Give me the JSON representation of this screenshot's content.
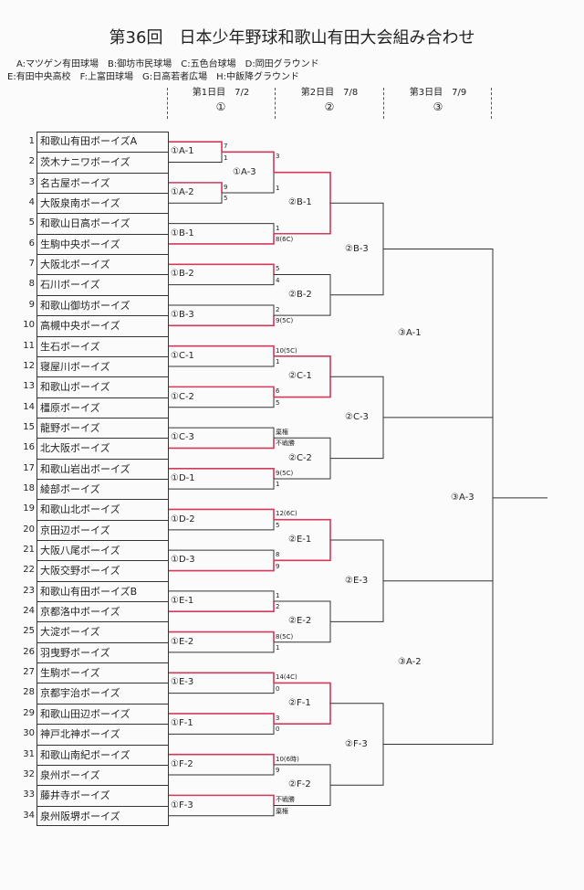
{
  "title": "第36回　日本少年野球和歌山有田大会組み合わせ",
  "venues": [
    "A:マツゲン有田球場　B:御坊市民球場　C:五色台球場　D:岡田グラウンド",
    "E:有田中央高校　F:上富田球場　G:日高若者広場　H:中飯降グラウンド"
  ],
  "days": [
    {
      "label": "第1日目　7/2",
      "num": "①"
    },
    {
      "label": "第2日目　7/8",
      "num": "②"
    },
    {
      "label": "第3日目　7/9",
      "num": "③"
    }
  ],
  "teams": [
    {
      "no": "1",
      "name": "和歌山有田ボーイズA"
    },
    {
      "no": "2",
      "name": "茨木ナニワボーイズ"
    },
    {
      "no": "3",
      "name": "名古屋ボーイズ"
    },
    {
      "no": "4",
      "name": "大阪泉南ボーイズ"
    },
    {
      "no": "5",
      "name": "和歌山日高ボーイズ"
    },
    {
      "no": "6",
      "name": "生駒中央ボーイズ"
    },
    {
      "no": "7",
      "name": "大阪北ボーイズ"
    },
    {
      "no": "8",
      "name": "石川ボーイズ"
    },
    {
      "no": "9",
      "name": "和歌山御坊ボーイズ"
    },
    {
      "no": "10",
      "name": "高槻中央ボーイズ"
    },
    {
      "no": "11",
      "name": "生石ボーイズ"
    },
    {
      "no": "12",
      "name": "寝屋川ボーイズ"
    },
    {
      "no": "13",
      "name": "和歌山ボーイズ"
    },
    {
      "no": "14",
      "name": "橿原ボーイズ"
    },
    {
      "no": "15",
      "name": "龍野ボーイズ"
    },
    {
      "no": "16",
      "name": "北大阪ボーイズ"
    },
    {
      "no": "17",
      "name": "和歌山岩出ボーイズ"
    },
    {
      "no": "18",
      "name": "綾部ボーイズ"
    },
    {
      "no": "19",
      "name": "和歌山北ボーイズ"
    },
    {
      "no": "20",
      "name": "京田辺ボーイズ"
    },
    {
      "no": "21",
      "name": "大阪八尾ボーイズ"
    },
    {
      "no": "22",
      "name": "大阪交野ボーイズ"
    },
    {
      "no": "23",
      "name": "和歌山有田ボーイズB"
    },
    {
      "no": "24",
      "name": "京都洛中ボーイズ"
    },
    {
      "no": "25",
      "name": "大淀ボーイズ"
    },
    {
      "no": "26",
      "name": "羽曳野ボーイズ"
    },
    {
      "no": "27",
      "name": "生駒ボーイズ"
    },
    {
      "no": "28",
      "name": "京都宇治ボーイズ"
    },
    {
      "no": "29",
      "name": "和歌山田辺ボーイズ"
    },
    {
      "no": "30",
      "name": "神戸北神ボーイズ"
    },
    {
      "no": "31",
      "name": "和歌山南紀ボーイズ"
    },
    {
      "no": "32",
      "name": "泉州ボーイズ"
    },
    {
      "no": "33",
      "name": "藤井寺ボーイズ"
    },
    {
      "no": "34",
      "name": "泉州阪堺ボーイズ"
    }
  ],
  "round1": [
    {
      "label": "①A-1",
      "score_top": "7",
      "score_bot": "1",
      "winner": "top"
    },
    {
      "label": "①A-2",
      "score_top": "9",
      "score_bot": "5",
      "winner": "top"
    },
    {
      "label": "①B-1",
      "score_top": "1",
      "score_bot": "8(6C)",
      "winner": "bot"
    },
    {
      "label": "①B-2",
      "score_top": "5",
      "score_bot": "4",
      "winner": "top"
    },
    {
      "label": "①B-3",
      "score_top": "2",
      "score_bot": "9(5C)",
      "winner": "bot"
    },
    {
      "label": "①C-1",
      "score_top": "10(5C)",
      "score_bot": "1",
      "winner": "top"
    },
    {
      "label": "①C-2",
      "score_top": "6",
      "score_bot": "5",
      "winner": "top"
    },
    {
      "label": "①C-3",
      "score_top": "棄権",
      "score_bot": "不戦勝",
      "winner": "bot"
    },
    {
      "label": "①D-1",
      "score_top": "9(5C)",
      "score_bot": "1",
      "winner": "top"
    },
    {
      "label": "①D-2",
      "score_top": "12(6C)",
      "score_bot": "5",
      "winner": "top"
    },
    {
      "label": "①D-3",
      "score_top": "8",
      "score_bot": "9",
      "winner": "bot"
    },
    {
      "label": "①E-1",
      "score_top": "1",
      "score_bot": "2",
      "winner": "bot"
    },
    {
      "label": "①E-2",
      "score_top": "8(5C)",
      "score_bot": "1",
      "winner": "top"
    },
    {
      "label": "①E-3",
      "score_top": "14(4C)",
      "score_bot": "0",
      "winner": "top"
    },
    {
      "label": "①F-1",
      "score_top": "3",
      "score_bot": "0",
      "winner": "top"
    },
    {
      "label": "①F-2",
      "score_top": "10(6時)",
      "score_bot": "9",
      "winner": "top"
    },
    {
      "label": "①F-3",
      "score_top": "不戦勝",
      "score_bot": "棄権",
      "winner": "top"
    }
  ],
  "round_a3": {
    "label": "①A-3",
    "score_top": "3",
    "score_bot": "1",
    "winner": "top"
  },
  "round2": [
    {
      "label": "②B-1"
    },
    {
      "label": "②B-2"
    },
    {
      "label": "②C-1"
    },
    {
      "label": "②C-2"
    },
    {
      "label": "②E-1"
    },
    {
      "label": "②E-2"
    },
    {
      "label": "②F-1"
    },
    {
      "label": "②F-2"
    }
  ],
  "round2b": [
    {
      "label": "②B-3"
    },
    {
      "label": "②C-3"
    },
    {
      "label": "②E-3"
    },
    {
      "label": "②F-3"
    }
  ],
  "round3": [
    {
      "label": "③A-1"
    },
    {
      "label": "③A-2"
    }
  ],
  "final": {
    "label": "③A-3"
  },
  "colors": {
    "win": "#d23a5a",
    "line": "#333333"
  }
}
